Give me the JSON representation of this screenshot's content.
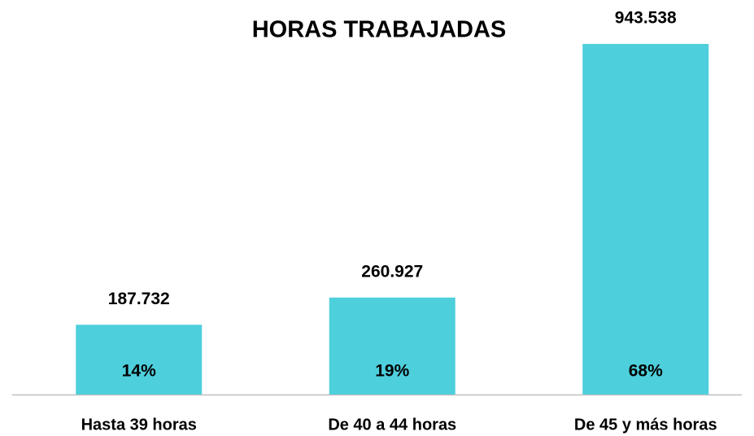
{
  "chart_data": {
    "type": "bar",
    "title": "HORAS TRABAJADAS",
    "categories": [
      "Hasta 39 horas",
      "De 40 a 44 horas",
      "De 45 y más horas"
    ],
    "values": [
      187732,
      260927,
      943538
    ],
    "value_labels": [
      "187.732",
      "260.927",
      "943.538"
    ],
    "shares": [
      14,
      19,
      68
    ],
    "share_labels": [
      "14%",
      "19%",
      "68%"
    ],
    "color": "#4ecfdc",
    "ylim": [
      0,
      943538
    ]
  }
}
